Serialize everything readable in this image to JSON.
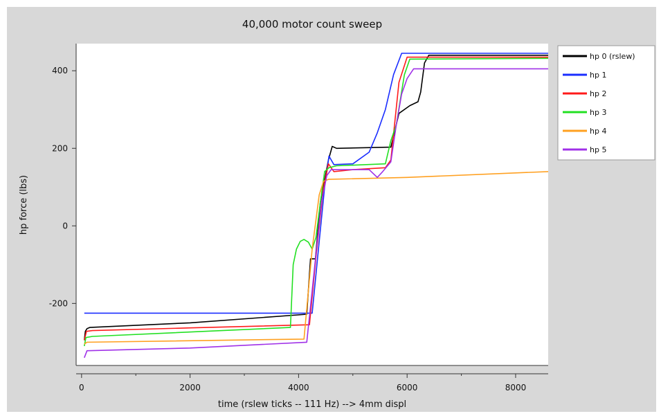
{
  "chart_data": {
    "type": "line",
    "title": "40,000 motor count sweep",
    "xlabel": "time (rslew ticks -- 111 Hz) --> 4mm displ",
    "ylabel": "hp force (lbs)",
    "xlim": [
      -100,
      8600
    ],
    "ylim": [
      -360,
      470
    ],
    "xticks": [
      0,
      2000,
      4000,
      6000,
      8000
    ],
    "yticks": [
      -200,
      0,
      200,
      400
    ],
    "grid": false,
    "legend_position": "right",
    "series": [
      {
        "name": "hp 0 (rslew)",
        "color": "#000000",
        "points": [
          [
            50,
            -295
          ],
          [
            70,
            -272
          ],
          [
            100,
            -265
          ],
          [
            150,
            -262
          ],
          [
            2000,
            -250
          ],
          [
            4150,
            -228
          ],
          [
            4220,
            -85
          ],
          [
            4310,
            -85
          ],
          [
            4400,
            60
          ],
          [
            4550,
            170
          ],
          [
            4620,
            205
          ],
          [
            4700,
            200
          ],
          [
            5700,
            203
          ],
          [
            5850,
            290
          ],
          [
            6050,
            310
          ],
          [
            6200,
            320
          ],
          [
            6250,
            345
          ],
          [
            6320,
            420
          ],
          [
            6400,
            440
          ],
          [
            8600,
            440
          ]
        ]
      },
      {
        "name": "hp 1",
        "color": "#1a2dff",
        "points": [
          [
            50,
            -225
          ],
          [
            4250,
            -225
          ],
          [
            4380,
            -40
          ],
          [
            4480,
            100
          ],
          [
            4560,
            180
          ],
          [
            4650,
            158
          ],
          [
            5000,
            160
          ],
          [
            5300,
            190
          ],
          [
            5450,
            240
          ],
          [
            5600,
            300
          ],
          [
            5750,
            390
          ],
          [
            5900,
            445
          ],
          [
            8600,
            445
          ]
        ]
      },
      {
        "name": "hp 2",
        "color": "#ff1a1a",
        "points": [
          [
            50,
            -295
          ],
          [
            90,
            -272
          ],
          [
            200,
            -270
          ],
          [
            2000,
            -263
          ],
          [
            4200,
            -255
          ],
          [
            4320,
            -80
          ],
          [
            4450,
            90
          ],
          [
            4550,
            160
          ],
          [
            4650,
            140
          ],
          [
            5000,
            145
          ],
          [
            5600,
            150
          ],
          [
            5700,
            170
          ],
          [
            5850,
            370
          ],
          [
            6000,
            435
          ],
          [
            8600,
            435
          ]
        ]
      },
      {
        "name": "hp 3",
        "color": "#22e022",
        "points": [
          [
            50,
            -310
          ],
          [
            80,
            -288
          ],
          [
            200,
            -285
          ],
          [
            3850,
            -262
          ],
          [
            3900,
            -100
          ],
          [
            3960,
            -60
          ],
          [
            4030,
            -40
          ],
          [
            4100,
            -35
          ],
          [
            4180,
            -42
          ],
          [
            4250,
            -60
          ],
          [
            4320,
            -30
          ],
          [
            4400,
            60
          ],
          [
            4480,
            140
          ],
          [
            4560,
            150
          ],
          [
            4700,
            155
          ],
          [
            5600,
            160
          ],
          [
            5700,
            220
          ],
          [
            5800,
            260
          ],
          [
            5880,
            330
          ],
          [
            5950,
            390
          ],
          [
            6050,
            430
          ],
          [
            8600,
            432
          ]
        ]
      },
      {
        "name": "hp 4",
        "color": "#ffa020",
        "points": [
          [
            50,
            -305
          ],
          [
            100,
            -300
          ],
          [
            4100,
            -292
          ],
          [
            4250,
            -60
          ],
          [
            4380,
            80
          ],
          [
            4460,
            115
          ],
          [
            4550,
            120
          ],
          [
            6000,
            125
          ],
          [
            8600,
            140
          ]
        ]
      },
      {
        "name": "hp 5",
        "color": "#a030e8",
        "points": [
          [
            50,
            -340
          ],
          [
            100,
            -322
          ],
          [
            2000,
            -315
          ],
          [
            4150,
            -300
          ],
          [
            4300,
            -100
          ],
          [
            4420,
            60
          ],
          [
            4520,
            130
          ],
          [
            4600,
            145
          ],
          [
            5300,
            145
          ],
          [
            5450,
            125
          ],
          [
            5550,
            140
          ],
          [
            5700,
            165
          ],
          [
            5800,
            260
          ],
          [
            5900,
            340
          ],
          [
            6000,
            380
          ],
          [
            6120,
            405
          ],
          [
            8600,
            405
          ]
        ]
      }
    ]
  }
}
